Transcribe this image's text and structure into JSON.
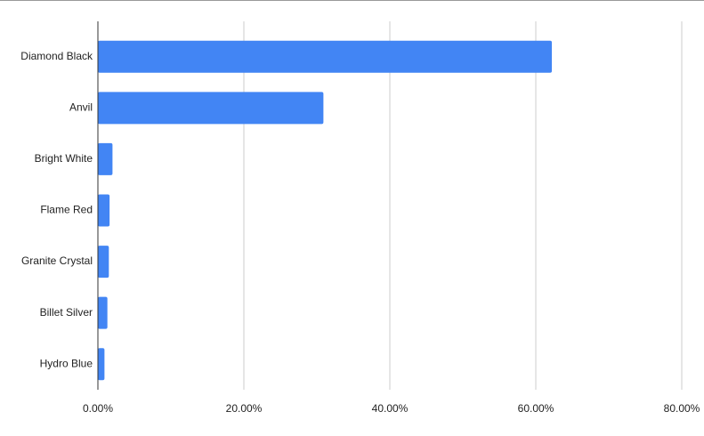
{
  "chart_data": {
    "type": "hbar",
    "categories": [
      "Diamond Black",
      "Anvil",
      "Bright White",
      "Flame Red",
      "Granite Crystal",
      "Billet Silver",
      "Hydro Blue"
    ],
    "values": [
      62.2,
      30.9,
      2.0,
      1.6,
      1.5,
      1.3,
      0.9
    ],
    "color": "#4285f4",
    "xlim": [
      0,
      80
    ],
    "xticks": [
      {
        "value": 0,
        "label": "0.00%"
      },
      {
        "value": 20,
        "label": "20.00%"
      },
      {
        "value": 40,
        "label": "40.00%"
      },
      {
        "value": 60,
        "label": "60.00%"
      },
      {
        "value": 80,
        "label": "80.00%"
      }
    ],
    "grid": true
  }
}
